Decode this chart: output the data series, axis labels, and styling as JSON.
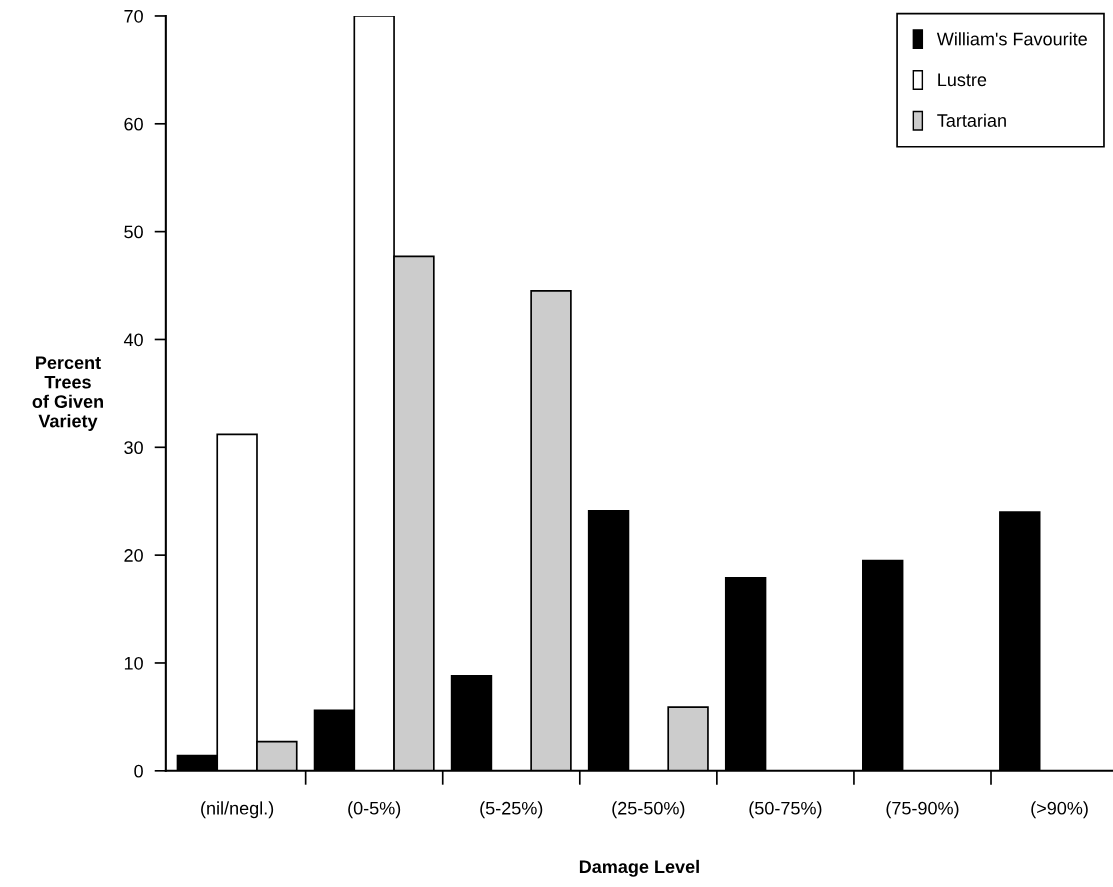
{
  "chart_data": {
    "type": "bar",
    "xlabel": "Damage Level",
    "ylabel": "Percent\nTrees\nof Given\nVariety",
    "categories": [
      "(nil/negl.)",
      "(0-5%)",
      "(5-25%)",
      "(25-50%)",
      "(50-75%)",
      "(75-90%)",
      "(>90%)"
    ],
    "series": [
      {
        "name": "William's Favourite",
        "color": "#000000",
        "values": [
          1.4,
          5.6,
          8.8,
          24.1,
          17.9,
          19.5,
          24.0
        ]
      },
      {
        "name": "Lustre",
        "color": "#ffffff",
        "values": [
          31.2,
          70,
          null,
          null,
          null,
          null,
          null
        ]
      },
      {
        "name": "Tartarian",
        "color": "#cccccc",
        "values": [
          2.7,
          47.7,
          44.5,
          5.9,
          null,
          null,
          null
        ]
      }
    ],
    "ylim": [
      0,
      70
    ],
    "yticks": [
      0,
      10,
      20,
      30,
      40,
      50,
      60,
      70
    ],
    "grid": false,
    "legend": "top right"
  }
}
